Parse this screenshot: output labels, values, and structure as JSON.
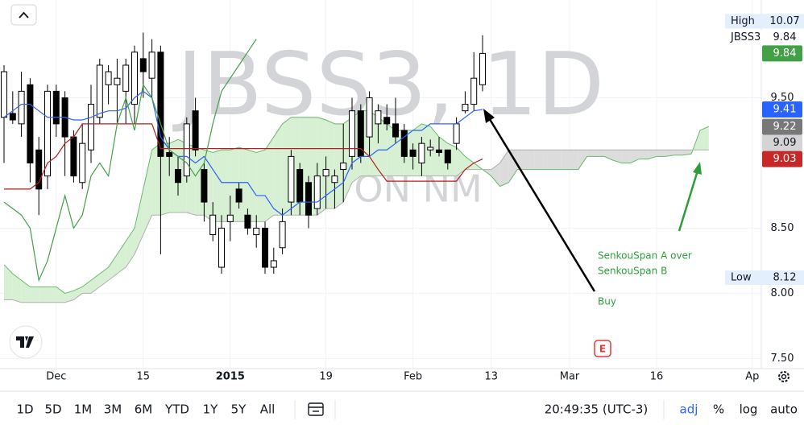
{
  "chart_data": {
    "type": "candlestick",
    "title": "JBSS3, 1D",
    "subtitle": "JBS ON NM",
    "categories": [
      null,
      null,
      null,
      null,
      null,
      null,
      "Dec",
      null,
      null,
      null,
      null,
      null,
      null,
      null,
      null,
      null,
      "15",
      null,
      null,
      null,
      null,
      null,
      null,
      null,
      null,
      null,
      "2015",
      null,
      null,
      null,
      null,
      null,
      null,
      null,
      null,
      null,
      null,
      "19",
      null,
      null,
      null,
      null,
      null,
      null,
      null,
      null,
      null,
      "Feb",
      null,
      null,
      null,
      null,
      null,
      null,
      null,
      null,
      "13",
      null,
      null,
      null,
      null,
      null,
      null,
      null,
      null,
      "Mar",
      null,
      null,
      null,
      null,
      null,
      null,
      null,
      null,
      null,
      "16",
      null,
      null,
      null,
      null,
      null,
      null,
      null,
      null,
      null,
      null,
      "Ap",
      null
    ],
    "ohlc": [
      [
        9.35,
        9.75,
        9.0,
        9.7
      ],
      [
        9.38,
        9.55,
        9.3,
        9.33
      ],
      [
        9.3,
        9.7,
        9.2,
        9.55
      ],
      [
        9.6,
        9.65,
        8.85,
        9.0
      ],
      [
        9.1,
        9.2,
        8.6,
        8.8
      ],
      [
        8.9,
        9.6,
        8.8,
        9.55
      ],
      [
        9.55,
        9.6,
        9.2,
        9.3
      ],
      [
        9.5,
        9.55,
        8.9,
        9.2
      ],
      [
        9.2,
        9.25,
        8.85,
        8.9
      ],
      [
        8.85,
        9.3,
        8.8,
        9.15
      ],
      [
        9.1,
        9.6,
        9.0,
        9.45
      ],
      [
        9.35,
        9.8,
        9.3,
        9.75
      ],
      [
        9.6,
        9.75,
        9.45,
        9.7
      ],
      [
        9.6,
        9.8,
        9.3,
        9.65
      ],
      [
        9.55,
        9.8,
        9.3,
        9.75
      ],
      [
        9.45,
        9.9,
        9.3,
        9.85
      ],
      [
        9.8,
        10.0,
        9.5,
        9.7
      ],
      [
        9.65,
        9.95,
        9.5,
        9.85
      ],
      [
        9.85,
        9.9,
        8.3,
        9.05
      ],
      [
        9.08,
        9.2,
        8.9,
        9.05
      ],
      [
        8.95,
        9.05,
        8.75,
        8.85
      ],
      [
        8.9,
        9.35,
        8.85,
        9.3
      ],
      [
        9.4,
        9.5,
        9.05,
        9.1
      ],
      [
        8.95,
        9.0,
        8.55,
        8.7
      ],
      [
        8.45,
        8.7,
        8.4,
        8.6
      ],
      [
        8.2,
        8.6,
        8.15,
        8.5
      ],
      [
        8.55,
        8.75,
        8.4,
        8.6
      ],
      [
        8.8,
        8.85,
        8.65,
        8.7
      ],
      [
        8.6,
        8.65,
        8.45,
        8.5
      ],
      [
        8.45,
        8.6,
        8.35,
        8.5
      ],
      [
        8.5,
        8.55,
        8.15,
        8.2
      ],
      [
        8.2,
        8.35,
        8.15,
        8.25
      ],
      [
        8.35,
        8.65,
        8.3,
        8.55
      ],
      [
        8.7,
        9.1,
        8.6,
        9.05
      ],
      [
        8.95,
        9.0,
        8.6,
        8.7
      ],
      [
        8.85,
        8.9,
        8.5,
        8.6
      ],
      [
        8.65,
        9.0,
        8.6,
        8.9
      ],
      [
        8.9,
        9.05,
        8.65,
        8.95
      ],
      [
        8.85,
        8.95,
        8.65,
        8.9
      ],
      [
        8.95,
        9.3,
        8.7,
        9.0
      ],
      [
        9.05,
        9.5,
        8.95,
        9.4
      ],
      [
        9.4,
        9.45,
        9.0,
        9.05
      ],
      [
        9.2,
        9.55,
        9.05,
        9.5
      ],
      [
        9.3,
        9.45,
        9.15,
        9.4
      ],
      [
        9.35,
        9.45,
        9.25,
        9.3
      ],
      [
        9.3,
        9.5,
        9.15,
        9.2
      ],
      [
        9.25,
        9.3,
        9.0,
        9.05
      ],
      [
        9.1,
        9.15,
        8.95,
        9.05
      ],
      [
        9.0,
        9.2,
        8.9,
        9.15
      ],
      [
        9.1,
        9.18,
        9.05,
        9.12
      ],
      [
        9.1,
        9.2,
        9.05,
        9.08
      ],
      [
        9.1,
        9.1,
        8.95,
        9.0
      ],
      [
        9.15,
        9.35,
        9.1,
        9.3
      ],
      [
        9.4,
        9.55,
        9.38,
        9.45
      ],
      [
        9.45,
        9.85,
        9.4,
        9.65
      ],
      [
        9.6,
        9.98,
        9.55,
        9.84
      ]
    ],
    "up_color": "#ffffff",
    "down_color": "#000000",
    "lines": [
      {
        "color": "#2962ff",
        "values": [
          9.35,
          9.4,
          9.45,
          9.45,
          9.4,
          9.35,
          9.35,
          9.35,
          9.33,
          9.33,
          9.35,
          9.38,
          9.4,
          9.4,
          9.42,
          9.5,
          9.55,
          9.5,
          9.2,
          9.1,
          9.05,
          9.05,
          9.0,
          9.05,
          8.95,
          8.85,
          8.85,
          8.85,
          8.85,
          8.75,
          8.75,
          8.65,
          8.6,
          8.65,
          8.7,
          8.7,
          8.7,
          8.75,
          8.8,
          8.85,
          9.0,
          9.05,
          9.05,
          9.1,
          9.1,
          9.15,
          9.2,
          9.25,
          9.25,
          9.3,
          9.3,
          9.3,
          9.3,
          9.35,
          9.4,
          9.41
        ]
      },
      {
        "color": "#b71c1c",
        "values": [
          8.8,
          8.8,
          8.8,
          8.8,
          8.85,
          9.0,
          9.05,
          9.15,
          9.2,
          9.3,
          9.3,
          9.3,
          9.3,
          9.3,
          9.3,
          9.3,
          9.3,
          9.3,
          9.11,
          9.11,
          9.11,
          9.11,
          9.11,
          9.11,
          9.11,
          9.11,
          9.11,
          9.11,
          9.11,
          9.11,
          9.11,
          9.11,
          9.11,
          9.11,
          9.11,
          9.11,
          9.11,
          9.11,
          9.11,
          9.11,
          9.11,
          9.11,
          9.05,
          8.95,
          8.86,
          8.86,
          8.86,
          8.86,
          8.86,
          8.86,
          8.86,
          8.86,
          8.86,
          8.95,
          9.0,
          9.03
        ]
      },
      {
        "color": "#43a047",
        "values": [
          8.7,
          8.65,
          8.6,
          8.5,
          8.1,
          8.25,
          8.5,
          8.75,
          8.5,
          8.6,
          8.9,
          9.0,
          8.9,
          9.3,
          9.5,
          9.25,
          9.6,
          9.5,
          9.3,
          9.1,
          9.05,
          9.0,
          8.9,
          9.0,
          9.3,
          9.55,
          9.65,
          9.75,
          9.85,
          9.95
        ]
      }
    ],
    "cloud": {
      "span_a": [
        8.22,
        8.15,
        8.1,
        8.05,
        8.05,
        8.05,
        8.05,
        8.0,
        8.02,
        8.05,
        8.1,
        8.15,
        8.2,
        8.3,
        8.4,
        8.5,
        8.8,
        9.1,
        9.15,
        9.15,
        9.18,
        9.15,
        9.12,
        9.1,
        9.08,
        9.1,
        9.1,
        9.12,
        9.1,
        9.08,
        9.1,
        9.2,
        9.3,
        9.35,
        9.35,
        9.35,
        9.35,
        9.33,
        9.3,
        9.3,
        9.35,
        9.4,
        9.4,
        9.35,
        9.3,
        9.25,
        9.25,
        9.25,
        9.3,
        9.28,
        9.2,
        9.15,
        9.12,
        9.05,
        9.0,
        8.95,
        8.9,
        8.82,
        8.85,
        8.95,
        8.95,
        8.95,
        8.95,
        8.95,
        8.95,
        8.95,
        8.95,
        9.05,
        9.05,
        9.05,
        9.02,
        9.0,
        9.0,
        9.03,
        9.03,
        9.05,
        9.05,
        9.06,
        9.06,
        9.07,
        9.25,
        9.28
      ],
      "span_b": [
        7.95,
        7.95,
        7.93,
        7.93,
        7.93,
        7.93,
        7.93,
        7.93,
        7.95,
        8.0,
        8.0,
        8.05,
        8.1,
        8.15,
        8.2,
        8.3,
        8.45,
        8.6,
        8.6,
        8.62,
        8.62,
        8.62,
        8.6,
        8.6,
        8.55,
        8.55,
        8.55,
        8.55,
        8.55,
        8.55,
        8.55,
        8.6,
        8.6,
        8.6,
        8.6,
        8.6,
        8.6,
        8.65,
        8.65,
        8.7,
        8.85,
        8.9,
        8.9,
        8.9,
        8.9,
        8.9,
        8.9,
        8.9,
        8.9,
        8.9,
        8.9,
        8.9,
        8.9,
        8.95,
        8.95,
        8.95,
        8.95,
        9.0,
        9.1,
        9.1,
        9.1,
        9.1,
        9.1,
        9.1,
        9.1,
        9.1,
        9.1,
        9.1,
        9.1,
        9.1,
        9.1,
        9.1,
        9.1,
        9.1,
        9.1,
        9.1,
        9.1,
        9.1,
        9.1,
        9.1,
        9.1,
        9.1
      ],
      "bull_color": "#d7f0d3",
      "bear_color": "#dcdcdc",
      "a_color": "#66bb6a",
      "b_color": "#b0b0b0"
    },
    "ylim": [
      7.41,
      10.25
    ],
    "yticks": [
      {
        "value": 7.5,
        "label": "7.50"
      },
      {
        "value": 8,
        "label": "8.00"
      },
      {
        "value": 8.5,
        "label": "8.50"
      },
      {
        "value": 9.5,
        "label": "9.50"
      }
    ],
    "grid": true,
    "price_tags": [
      {
        "label": "High",
        "value": 10.07,
        "bg": "#e3effd",
        "fg": "#131722"
      },
      {
        "label": "JBSS3",
        "value": 9.84,
        "bg": "#ffffff",
        "fg": "#131722"
      },
      {
        "value": 9.84,
        "bg": "#43a047",
        "fg": "#ffffff"
      },
      {
        "value": 9.41,
        "bg": "#2962ff",
        "fg": "#ffffff"
      },
      {
        "value": 9.22,
        "bg": "#787878",
        "fg": "#ffffff"
      },
      {
        "value": 9.09,
        "bg": "#d4d4d4",
        "fg": "#131722"
      },
      {
        "value": 9.03,
        "bg": "#c62828",
        "fg": "#ffffff"
      },
      {
        "label": "Low",
        "value": 8.12,
        "bg": "#e3effd",
        "fg": "#131722"
      }
    ],
    "annotations": [
      "Buy",
      "SenkouSpan A over",
      "SenkouSpan B"
    ],
    "earnings_marker": "E"
  },
  "toolbar": {
    "ranges": [
      "1D",
      "5D",
      "1M",
      "3M",
      "6M",
      "YTD",
      "1Y",
      "5Y",
      "All"
    ],
    "clock": "20:49:35 (UTC-3)",
    "options": [
      "adj",
      "%",
      "log",
      "auto"
    ]
  }
}
